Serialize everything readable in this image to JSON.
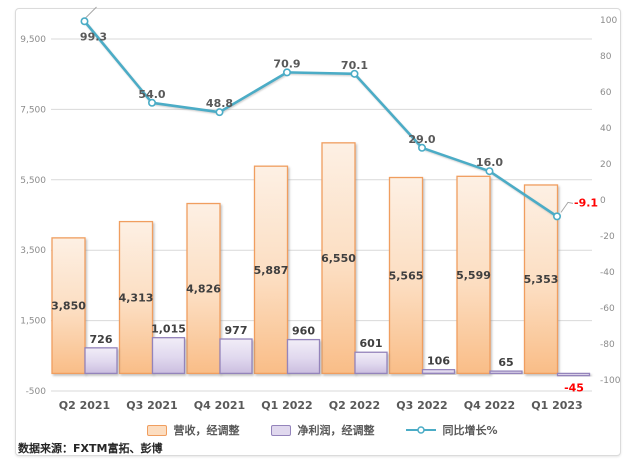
{
  "source_note": "数据来源：FXTM富拓、彭博",
  "legend": {
    "items": [
      {
        "label": "营收，经调整"
      },
      {
        "label": "净利润，经调整"
      },
      {
        "label": "同比增长%"
      }
    ]
  },
  "chart_data": {
    "type": "combo-bar-line",
    "title": "",
    "categories": [
      "Q2 2021",
      "Q3 2021",
      "Q4 2021",
      "Q1 2022",
      "Q2 2022",
      "Q3 2022",
      "Q4 2022",
      "Q1 2023"
    ],
    "series": [
      {
        "name": "营收，经调整",
        "type": "bar",
        "axis": "left",
        "values": [
          3850,
          4313,
          4826,
          5887,
          6550,
          5565,
          5599,
          5353
        ],
        "labels": [
          "3,850",
          "4,313",
          "4,826",
          "5,887",
          "6,550",
          "5,565",
          "5,599",
          "5,353"
        ],
        "fill_top": "#FDF0E4",
        "fill_mid": "#FCDDC0",
        "fill_bottom": "#F9BD87",
        "border": "#F09E5F"
      },
      {
        "name": "净利润，经调整",
        "type": "bar",
        "axis": "left",
        "values": [
          726,
          1015,
          977,
          960,
          601,
          106,
          65,
          -45
        ],
        "labels": [
          "726",
          "1,015",
          "977",
          "960",
          "601",
          "106",
          "65",
          "-45"
        ],
        "fill_top": "#F1EDF7",
        "fill_mid": "#E0D8EE",
        "fill_bottom": "#CBBEDF",
        "border": "#9484BB"
      },
      {
        "name": "同比增长%",
        "type": "line",
        "axis": "right",
        "values": [
          99.3,
          54.0,
          48.8,
          70.9,
          70.1,
          29.0,
          16.0,
          -9.1
        ],
        "labels": [
          "99.3",
          "54.0",
          "48.8",
          "70.9",
          "70.1",
          "29.0",
          "16.0",
          "-9.1"
        ],
        "color": "#4BACC6",
        "marker_fill": "#FFFFFF"
      }
    ],
    "left_axis": {
      "min": -500,
      "max": 9500,
      "ticks": [
        9500,
        7500,
        5500,
        3500,
        1500,
        -500
      ],
      "tick_labels": [
        "9,500",
        "7,500",
        "5,500",
        "3,500",
        "1,500",
        "-500"
      ]
    },
    "right_axis": {
      "min": -100,
      "max": 100,
      "ticks": [
        100,
        80,
        60,
        40,
        20,
        0,
        -20,
        -40,
        -60,
        -80,
        -100
      ],
      "tick_labels": [
        "100",
        "80",
        "60",
        "40",
        "20",
        "0",
        "-20",
        "-40",
        "-60",
        "-80",
        "-100"
      ]
    },
    "colors": {
      "grid": "#D9D9D9",
      "tick_label": "#8C8C8C",
      "bar_label": "#3F3F3F",
      "line_label": "#595959",
      "negative_label": "#FF0000",
      "x_label": "#595959",
      "leader": "#A6A6A6"
    },
    "grid": "horizontal-major",
    "legend_position": "bottom"
  }
}
